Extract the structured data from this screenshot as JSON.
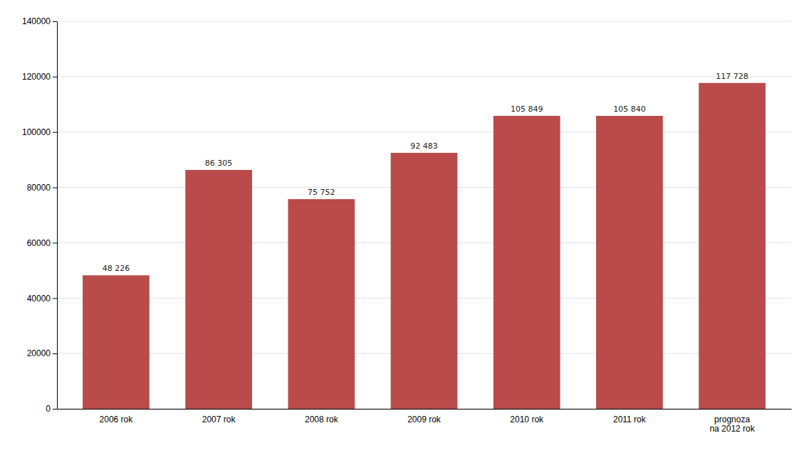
{
  "chart_data": {
    "type": "bar",
    "categories": [
      "2006 rok",
      "2007 rok",
      "2008 rok",
      "2009 rok",
      "2010 rok",
      "2011 rok",
      "prognoza\nna 2012 rok"
    ],
    "values": [
      48226,
      86305,
      75752,
      92483,
      105849,
      105840,
      117728
    ],
    "value_labels": [
      "48 226",
      "86 305",
      "75 752",
      "92 483",
      "105 849",
      "105 840",
      "117 728"
    ],
    "data_labels": true,
    "color": "#b94b4b",
    "ylim": [
      0,
      140000
    ],
    "yticks": [
      0,
      20000,
      40000,
      60000,
      80000,
      100000,
      120000,
      140000
    ],
    "grid": true
  }
}
